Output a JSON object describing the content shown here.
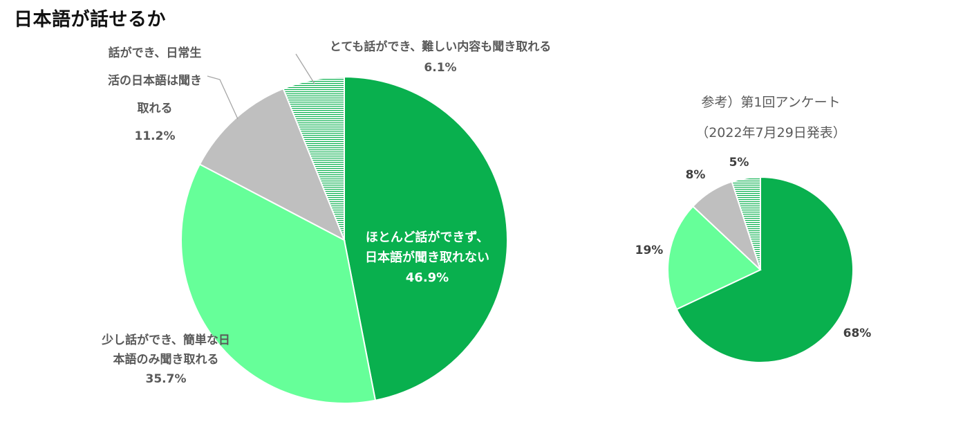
{
  "title": "日本語が話せるか",
  "chart_data": [
    {
      "type": "pie",
      "title": "",
      "colors": [
        "#09b04e",
        "#66ff99",
        "#bfbfbf",
        "hatch-green"
      ],
      "slices": [
        {
          "label_lines": [
            "ほとんど話ができず、",
            "日本語が聞き取れない"
          ],
          "value": 46.9,
          "display": "46.9%"
        },
        {
          "label_lines": [
            "少し話ができ、簡単な日",
            "本語のみ聞き取れる"
          ],
          "value": 35.7,
          "display": "35.7%"
        },
        {
          "label_lines": [
            "話ができ、日常生",
            "活の日本語は聞き",
            "取れる"
          ],
          "value": 11.2,
          "display": "11.2%"
        },
        {
          "label_lines": [
            "とても話ができ、難しい内容も聞き取れる"
          ],
          "value": 6.1,
          "display": "6.1%"
        }
      ]
    },
    {
      "type": "pie",
      "title": "参考）第1回アンケート",
      "subtitle": "（2022年7月29日発表）",
      "colors": [
        "#09b04e",
        "#66ff99",
        "#bfbfbf",
        "hatch-green"
      ],
      "slices": [
        {
          "value": 68,
          "display": "68%"
        },
        {
          "value": 19,
          "display": "19%"
        },
        {
          "value": 8,
          "display": "8%"
        },
        {
          "value": 5,
          "display": "5%"
        }
      ]
    }
  ]
}
